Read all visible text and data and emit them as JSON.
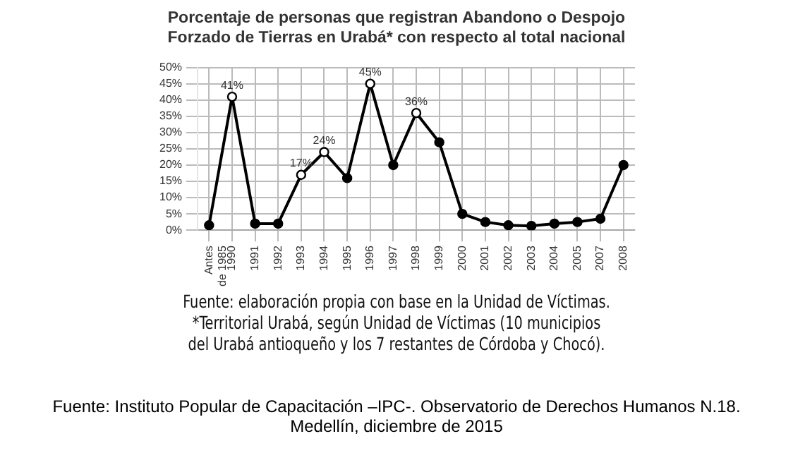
{
  "chart_data": {
    "type": "line",
    "title": "Porcentaje de personas que registran Abandono o Despojo\nForzado de Tierras en Urabá* con respecto al total nacional",
    "categories": [
      "Antes de 1985",
      "1990",
      "1991",
      "1992",
      "1993",
      "1994",
      "1995",
      "1996",
      "1997",
      "1998",
      "1999",
      "2000",
      "2001",
      "2002",
      "2003",
      "2004",
      "2005",
      "2007",
      "2008"
    ],
    "series": [
      {
        "color": "#000000",
        "values": [
          1.5,
          41,
          2,
          2,
          17,
          24,
          16,
          45,
          20,
          36,
          27,
          5,
          2.5,
          1.5,
          1.3,
          2,
          2.5,
          3.5,
          20
        ],
        "value_labels": [
          null,
          "41%",
          null,
          null,
          "17%",
          "24%",
          null,
          "45%",
          null,
          "36%",
          null,
          null,
          null,
          null,
          null,
          null,
          null,
          null,
          null
        ]
      }
    ],
    "ylim": [
      0,
      50
    ],
    "yticks": [
      {
        "value": 0,
        "label": "0%"
      },
      {
        "value": 5,
        "label": "5%"
      },
      {
        "value": 10,
        "label": "10%"
      },
      {
        "value": 15,
        "label": "15%"
      },
      {
        "value": 20,
        "label": "20%"
      },
      {
        "value": 25,
        "label": "25%"
      },
      {
        "value": 30,
        "label": "30%"
      },
      {
        "value": 35,
        "label": "35%"
      },
      {
        "value": 40,
        "label": "40%"
      },
      {
        "value": 45,
        "label": "45%"
      },
      {
        "value": 50,
        "label": "50%"
      }
    ],
    "grid": true,
    "legend": false,
    "marker": "circle",
    "line_style": "solid",
    "annotations": [
      "Fuente: elaboración propia con base en la Unidad de Víctimas.\n*Territorial Urabá, según Unidad de Víctimas (10 municipios\ndel Urabá antioqueño y los 7 restantes de Córdoba y Chocó).",
      "Fuente: Instituto Popular de Capacitación –IPC-. Observatorio de Derechos Humanos N.18.\nMedellín, diciembre de 2015"
    ]
  }
}
